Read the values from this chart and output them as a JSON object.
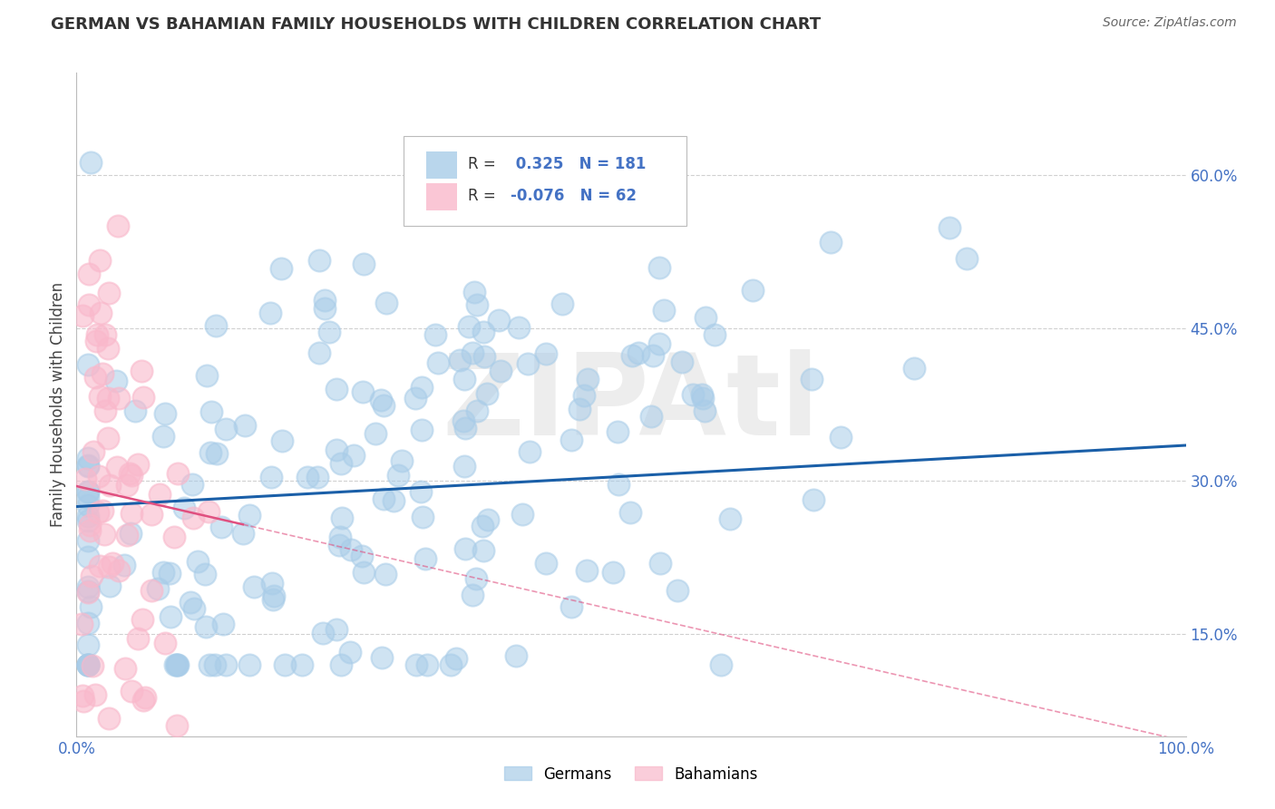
{
  "title": "GERMAN VS BAHAMIAN FAMILY HOUSEHOLDS WITH CHILDREN CORRELATION CHART",
  "source": "Source: ZipAtlas.com",
  "ylabel": "Family Households with Children",
  "xlim": [
    0,
    1.0
  ],
  "ylim": [
    0.05,
    0.7
  ],
  "yticks": [
    0.15,
    0.3,
    0.45,
    0.6
  ],
  "ytick_labels": [
    "15.0%",
    "30.0%",
    "45.0%",
    "60.0%"
  ],
  "german_R": 0.325,
  "german_N": 181,
  "bahamian_R": -0.076,
  "bahamian_N": 62,
  "german_color": "#a8cce8",
  "bahamian_color": "#f9b8cb",
  "german_line_color": "#1a5fa8",
  "bahamian_line_color": "#e05080",
  "watermark": "ZIPAtl",
  "background_color": "#ffffff",
  "grid_color": "#d0d0d0",
  "title_color": "#333333",
  "source_color": "#666666",
  "axis_text_color": "#4472c4",
  "legend_text_dark": "#333333",
  "legend_text_blue": "#4472c4"
}
